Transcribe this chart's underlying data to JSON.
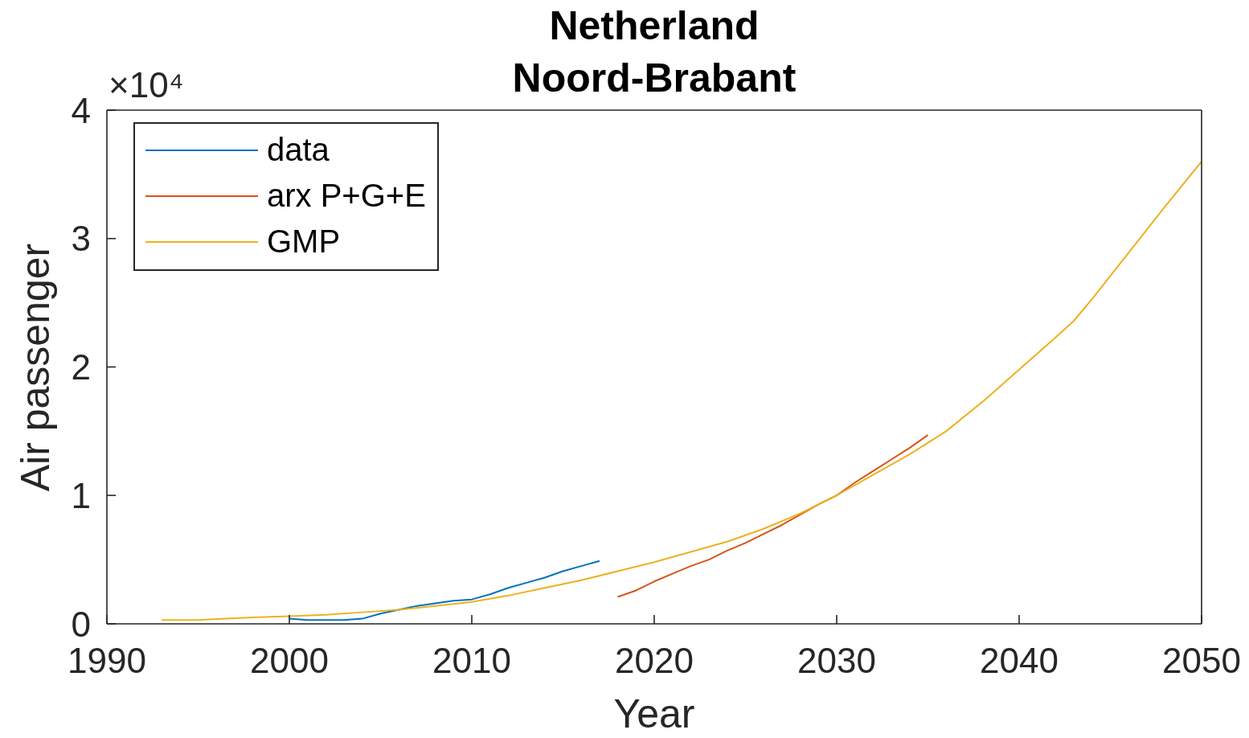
{
  "chart_data": {
    "type": "line",
    "title": "Netherland",
    "subtitle": "Noord-Brabant",
    "xlabel": "Year",
    "ylabel": "Air passenger",
    "annotations": [
      "×10⁴"
    ],
    "xlim": [
      1990,
      2050
    ],
    "xticks": [
      1990,
      2000,
      2010,
      2020,
      2030,
      2040,
      2050
    ],
    "ylim": [
      0,
      4
    ],
    "yticks": [
      0,
      1,
      2,
      3,
      4
    ],
    "legend": "top left",
    "series": [
      {
        "name": "data",
        "color": "#0072bd",
        "x": [
          2000,
          2001,
          2002,
          2003,
          2004,
          2005,
          2006,
          2007,
          2008,
          2009,
          2010,
          2011,
          2012,
          2013,
          2014,
          2015,
          2016,
          2017
        ],
        "values": [
          0.04,
          0.03,
          0.03,
          0.03,
          0.04,
          0.08,
          0.11,
          0.14,
          0.16,
          0.18,
          0.19,
          0.23,
          0.28,
          0.32,
          0.36,
          0.41,
          0.45,
          0.49
        ]
      },
      {
        "name": "arx P+G+E",
        "color": "#d95319",
        "x": [
          2018,
          2019,
          2020,
          2021,
          2022,
          2023,
          2024,
          2025,
          2026,
          2027,
          2028,
          2029,
          2030,
          2031,
          2032,
          2033,
          2034,
          2035
        ],
        "values": [
          0.21,
          0.26,
          0.33,
          0.39,
          0.45,
          0.5,
          0.57,
          0.63,
          0.7,
          0.77,
          0.85,
          0.93,
          1,
          1.1,
          1.19,
          1.28,
          1.37,
          1.47
        ]
      },
      {
        "name": "GMP",
        "color": "#edb120",
        "x": [
          1993,
          1995,
          1998,
          2000,
          2002,
          2004,
          2006,
          2008,
          2010,
          2012,
          2014,
          2016,
          2018,
          2020,
          2022,
          2024,
          2026,
          2028,
          2030,
          2032,
          2034,
          2036,
          2038,
          2040,
          2042,
          2043,
          2044,
          2046,
          2048,
          2050
        ],
        "values": [
          0.03,
          0.03,
          0.05,
          0.06,
          0.07,
          0.09,
          0.11,
          0.14,
          0.17,
          0.22,
          0.28,
          0.34,
          0.41,
          0.48,
          0.56,
          0.64,
          0.74,
          0.86,
          1,
          1.16,
          1.32,
          1.5,
          1.73,
          1.98,
          2.23,
          2.36,
          2.53,
          2.89,
          3.25,
          3.6
        ]
      }
    ]
  }
}
